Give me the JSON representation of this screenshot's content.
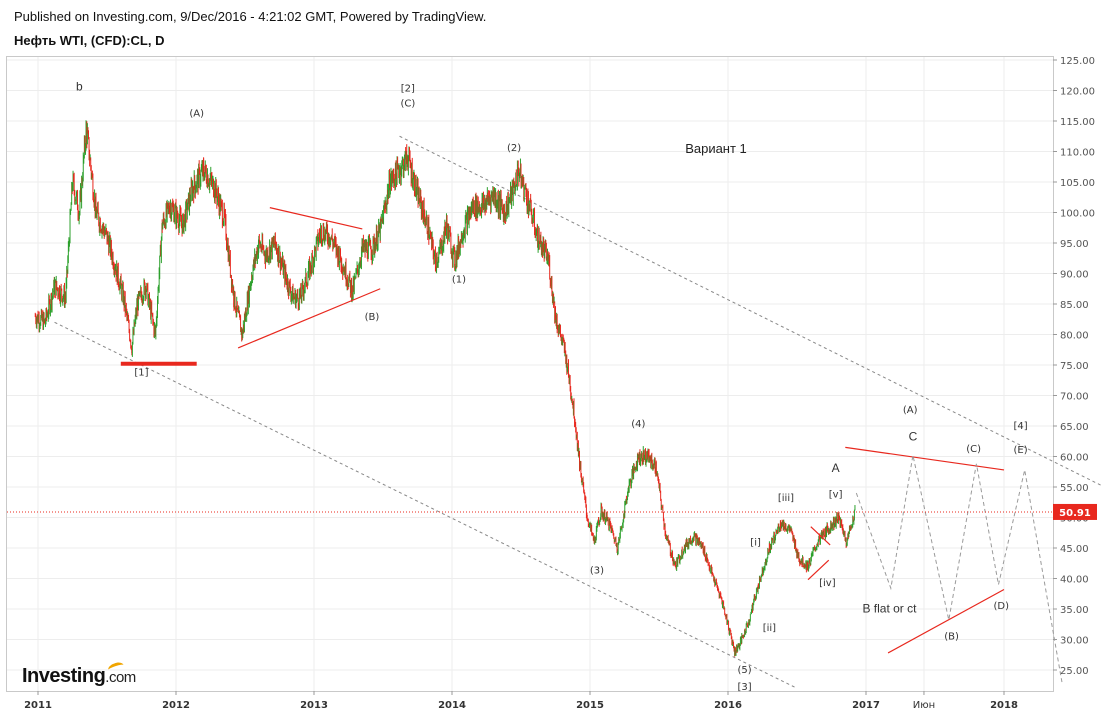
{
  "header": {
    "published": "Published on Investing.com, 9/Dec/2016 - 4:21:02 GMT, Powered by TradingView.",
    "instrument": "Нефть WTI, (CFD):CL, D"
  },
  "logo": {
    "name": "Investing",
    "suffix": ".com"
  },
  "colors": {
    "up_candle": "#2ca02c",
    "down_candle": "#e8281e",
    "trendline_red": "#e8281e",
    "channel_gray": "#888888",
    "projection_gray": "#9a9a9a",
    "price_tag_bg": "#e8281e",
    "price_line": "#e8281e"
  },
  "chart_data": {
    "type": "line",
    "subtype": "candlestick with Elliott wave annotations",
    "title": "Нефть WTI, (CFD):CL, D",
    "xlabel": "",
    "ylabel": "",
    "ylim": [
      21,
      125.5
    ],
    "yticks": [
      25,
      30,
      35,
      40,
      45,
      50,
      55,
      60,
      65,
      70,
      75,
      80,
      85,
      90,
      95,
      100,
      105,
      110,
      115,
      120,
      125
    ],
    "ytick_labels": [
      "25.00",
      "30.00",
      "35.00",
      "40.00",
      "45.00",
      "50.00",
      "55.00",
      "60.00",
      "65.00",
      "70.00",
      "75.00",
      "80.00",
      "85.00",
      "90.00",
      "95.00",
      "100.00",
      "105.00",
      "110.00",
      "115.00",
      "120.00",
      "125.00"
    ],
    "xlim": [
      2010.97,
      2018.95
    ],
    "xticks": [
      2011,
      2012,
      2013,
      2014,
      2015,
      2016,
      2017,
      2017.42,
      2018
    ],
    "xtick_labels": [
      "2011",
      "2012",
      "2013",
      "2014",
      "2015",
      "2016",
      "2017",
      "Июн",
      "2018"
    ],
    "last_price": 50.91,
    "last_price_label": "50.91",
    "grid": true,
    "legend": "none",
    "price_path": [
      [
        2010.98,
        83
      ],
      [
        2011.05,
        82
      ],
      [
        2011.12,
        88
      ],
      [
        2011.2,
        86
      ],
      [
        2011.25,
        105
      ],
      [
        2011.3,
        100
      ],
      [
        2011.35,
        114
      ],
      [
        2011.42,
        100
      ],
      [
        2011.5,
        96
      ],
      [
        2011.55,
        92
      ],
      [
        2011.62,
        86
      ],
      [
        2011.68,
        78
      ],
      [
        2011.72,
        85
      ],
      [
        2011.78,
        88
      ],
      [
        2011.85,
        80
      ],
      [
        2011.9,
        98
      ],
      [
        2011.96,
        101
      ],
      [
        2012.05,
        98
      ],
      [
        2012.12,
        104
      ],
      [
        2012.2,
        107
      ],
      [
        2012.28,
        104
      ],
      [
        2012.35,
        99
      ],
      [
        2012.42,
        86
      ],
      [
        2012.48,
        80
      ],
      [
        2012.55,
        90
      ],
      [
        2012.6,
        95
      ],
      [
        2012.65,
        93
      ],
      [
        2012.72,
        95
      ],
      [
        2012.8,
        89
      ],
      [
        2012.85,
        86
      ],
      [
        2012.9,
        86
      ],
      [
        2012.96,
        90
      ],
      [
        2013.05,
        97
      ],
      [
        2013.12,
        96
      ],
      [
        2013.2,
        92
      ],
      [
        2013.28,
        87
      ],
      [
        2013.35,
        94
      ],
      [
        2013.42,
        94
      ],
      [
        2013.48,
        97
      ],
      [
        2013.55,
        105
      ],
      [
        2013.62,
        107
      ],
      [
        2013.68,
        109
      ],
      [
        2013.75,
        103
      ],
      [
        2013.82,
        98
      ],
      [
        2013.88,
        92
      ],
      [
        2013.92,
        94
      ],
      [
        2013.96,
        98
      ],
      [
        2014.02,
        92
      ],
      [
        2014.08,
        97
      ],
      [
        2014.15,
        101
      ],
      [
        2014.22,
        101
      ],
      [
        2014.3,
        103
      ],
      [
        2014.38,
        100
      ],
      [
        2014.45,
        104
      ],
      [
        2014.48,
        107
      ],
      [
        2014.55,
        102
      ],
      [
        2014.62,
        96
      ],
      [
        2014.7,
        92
      ],
      [
        2014.75,
        83
      ],
      [
        2014.82,
        77
      ],
      [
        2014.88,
        68
      ],
      [
        2014.93,
        58
      ],
      [
        2014.98,
        50
      ],
      [
        2015.03,
        46
      ],
      [
        2015.08,
        51
      ],
      [
        2015.14,
        49
      ],
      [
        2015.2,
        45
      ],
      [
        2015.28,
        55
      ],
      [
        2015.35,
        60
      ],
      [
        2015.42,
        60
      ],
      [
        2015.48,
        58
      ],
      [
        2015.55,
        47
      ],
      [
        2015.62,
        42
      ],
      [
        2015.68,
        45
      ],
      [
        2015.75,
        47
      ],
      [
        2015.82,
        45
      ],
      [
        2015.88,
        41
      ],
      [
        2015.96,
        36
      ],
      [
        2016.05,
        28
      ],
      [
        2016.1,
        30
      ],
      [
        2016.15,
        33
      ],
      [
        2016.22,
        39
      ],
      [
        2016.3,
        45
      ],
      [
        2016.38,
        49
      ],
      [
        2016.45,
        48
      ],
      [
        2016.52,
        43
      ],
      [
        2016.58,
        42
      ],
      [
        2016.65,
        46
      ],
      [
        2016.72,
        48
      ],
      [
        2016.8,
        50
      ],
      [
        2016.86,
        46
      ],
      [
        2016.92,
        51
      ]
    ],
    "channel_lines": [
      {
        "name": "upper-channel",
        "from": [
          2013.62,
          112.5
        ],
        "to": [
          2018.95,
          52.5
        ]
      },
      {
        "name": "lower-channel",
        "from": [
          2011.12,
          82
        ],
        "to": [
          2016.5,
          22
        ]
      }
    ],
    "red_lines": [
      {
        "name": "support-2011",
        "from": [
          2011.6,
          75.2
        ],
        "to": [
          2012.15,
          75.2
        ],
        "thick": true
      },
      {
        "name": "triangle-upper",
        "from": [
          2012.68,
          100.8
        ],
        "to": [
          2013.35,
          97.3
        ]
      },
      {
        "name": "triangle-lower",
        "from": [
          2012.45,
          77.8
        ],
        "to": [
          2013.48,
          87.5
        ]
      },
      {
        "name": "projected-upper",
        "from": [
          2016.85,
          61.5
        ],
        "to": [
          2018.0,
          57.8
        ]
      },
      {
        "name": "projected-lower",
        "from": [
          2017.16,
          27.8
        ],
        "to": [
          2018.0,
          38.2
        ]
      },
      {
        "name": "small-wedge-top",
        "from": [
          2016.6,
          48.5
        ],
        "to": [
          2016.74,
          45.5
        ]
      },
      {
        "name": "small-wedge-bottom",
        "from": [
          2016.58,
          39.8
        ],
        "to": [
          2016.73,
          43.0
        ]
      }
    ],
    "projection_path": [
      [
        2016.93,
        54
      ],
      [
        2017.18,
        38.4
      ],
      [
        2017.34,
        60.2
      ],
      [
        2017.6,
        33.2
      ],
      [
        2017.8,
        58.8
      ],
      [
        2017.96,
        39.0
      ],
      [
        2018.15,
        57.8
      ],
      [
        2018.42,
        23.0
      ]
    ],
    "annotations": [
      {
        "text": "b",
        "x": 2011.3,
        "y": 120
      },
      {
        "text": "(A)",
        "x": 2012.15,
        "y": 115.7
      },
      {
        "text": "[2]",
        "x": 2013.68,
        "y": 119.8
      },
      {
        "text": "(C)",
        "x": 2013.68,
        "y": 117.4
      },
      {
        "text": "(2)",
        "x": 2014.45,
        "y": 110.1
      },
      {
        "text": "Вариант 1",
        "x": 2014.45,
        "y": 110,
        "kind": "title-note"
      },
      {
        "text": "(1)",
        "x": 2014.05,
        "y": 88.5
      },
      {
        "text": "(B)",
        "x": 2013.42,
        "y": 82.4
      },
      {
        "text": "[1]",
        "x": 2011.75,
        "y": 73.3
      },
      {
        "text": "(4)",
        "x": 2015.35,
        "y": 64.8
      },
      {
        "text": "(3)",
        "x": 2015.05,
        "y": 40.8
      },
      {
        "text": "(5)",
        "x": 2016.12,
        "y": 24.5
      },
      {
        "text": "[3]",
        "x": 2016.12,
        "y": 21.7
      },
      {
        "text": "[i]",
        "x": 2016.2,
        "y": 45.4
      },
      {
        "text": "[ii]",
        "x": 2016.3,
        "y": 31.4
      },
      {
        "text": "[iii]",
        "x": 2016.42,
        "y": 52.7
      },
      {
        "text": "[iv]",
        "x": 2016.72,
        "y": 38.8
      },
      {
        "text": "[v]",
        "x": 2016.78,
        "y": 53.3
      },
      {
        "text": "A",
        "x": 2016.78,
        "y": 57.5
      },
      {
        "text": "B flat or ct",
        "x": 2017.17,
        "y": 34.4
      },
      {
        "text": "(A)",
        "x": 2017.32,
        "y": 67.1
      },
      {
        "text": "C",
        "x": 2017.34,
        "y": 62.6
      },
      {
        "text": "(B)",
        "x": 2017.62,
        "y": 30.0
      },
      {
        "text": "(C)",
        "x": 2017.78,
        "y": 60.7
      },
      {
        "text": "(D)",
        "x": 2017.98,
        "y": 35.0
      },
      {
        "text": "[4]",
        "x": 2018.12,
        "y": 64.5
      },
      {
        "text": "(E)",
        "x": 2018.12,
        "y": 60.6
      }
    ]
  }
}
